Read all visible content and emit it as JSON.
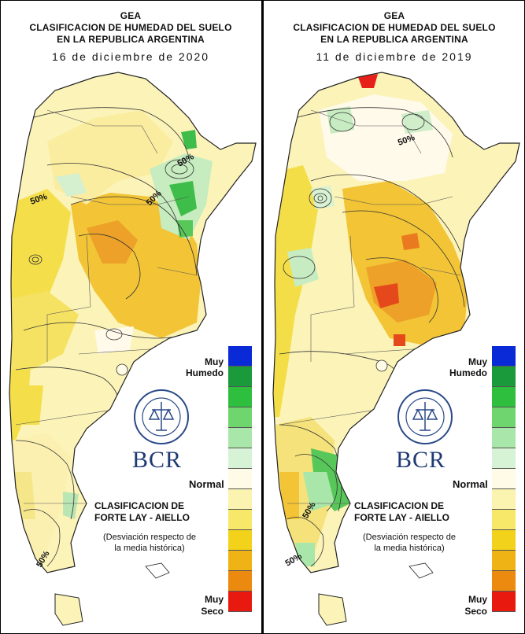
{
  "panels": [
    {
      "org": "GEA",
      "title_line1": "CLASIFICACION DE HUMEDAD DEL SUELO",
      "title_line2": "EN LA REPUBLICA ARGENTINA",
      "date": "16 de diciembre de 2020",
      "contour_labels": [
        "50%",
        "50%",
        "50%",
        "50%"
      ]
    },
    {
      "org": "GEA",
      "title_line1": "CLASIFICACION DE HUMEDAD DEL SUELO",
      "title_line2": "EN LA REPUBLICA ARGENTINA",
      "date": "11 de diciembre de 2019",
      "contour_labels": [
        "50%",
        "50%",
        "50%"
      ]
    }
  ],
  "legend": {
    "top_label_1": "Muy",
    "top_label_2": "Humedo",
    "mid_label": "Normal",
    "bottom_label_1": "Muy",
    "bottom_label_2": "Seco",
    "colors": [
      "#0a2ad8",
      "#1a9a3a",
      "#2fbf3f",
      "#6fd66f",
      "#a9e6a9",
      "#d6f3d6",
      "#fffbe6",
      "#fbf3b0",
      "#f7e86a",
      "#f2d21a",
      "#efb316",
      "#ec8a10",
      "#e81a10"
    ]
  },
  "brand": "BCR",
  "classification_line1": "CLASIFICACION DE",
  "classification_line2": "FORTE LAY - AIELLO",
  "description_line1": "(Desviación respecto de",
  "description_line2": "la media histórica)"
}
